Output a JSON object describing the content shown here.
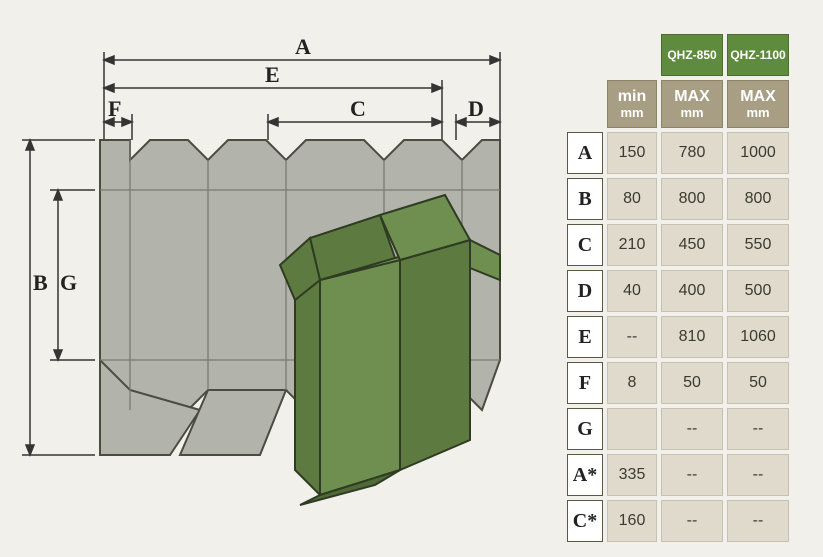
{
  "table": {
    "headers": {
      "min": {
        "line1": "min",
        "line2": "mm"
      },
      "model1": {
        "name": "QHZ-850",
        "line1": "MAX",
        "line2": "mm"
      },
      "model2": {
        "name": "QHZ-1100",
        "line1": "MAX",
        "line2": "mm"
      }
    },
    "rows": [
      {
        "label": "A",
        "min": "150",
        "m1": "780",
        "m2": "1000"
      },
      {
        "label": "B",
        "min": "80",
        "m1": "800",
        "m2": "800"
      },
      {
        "label": "C",
        "min": "210",
        "m1": "450",
        "m2": "550"
      },
      {
        "label": "D",
        "min": "40",
        "m1": "400",
        "m2": "500"
      },
      {
        "label": "E",
        "min": "--",
        "m1": "810",
        "m2": "1060"
      },
      {
        "label": "F",
        "min": "8",
        "m1": "50",
        "m2": "50"
      },
      {
        "label": "G",
        "min": "",
        "m1": "--",
        "m2": "--"
      },
      {
        "label": "A*",
        "min": "335",
        "m1": "--",
        "m2": "--"
      },
      {
        "label": "C*",
        "min": "160",
        "m1": "--",
        "m2": "--"
      }
    ]
  },
  "diagram": {
    "labels": {
      "A": "A",
      "B": "B",
      "C": "C",
      "D": "D",
      "E": "E",
      "F": "F",
      "G": "G"
    },
    "colors": {
      "flat_fill": "#b2b3ab",
      "flat_stroke": "#4b4b40",
      "box_fill": "#6e8f4f",
      "box_fill_dark": "#5d7a40",
      "box_fill_light": "#84a562",
      "box_stroke": "#2f3b22",
      "dim_line": "#343434",
      "fold_line": "#7a7a6f"
    }
  }
}
